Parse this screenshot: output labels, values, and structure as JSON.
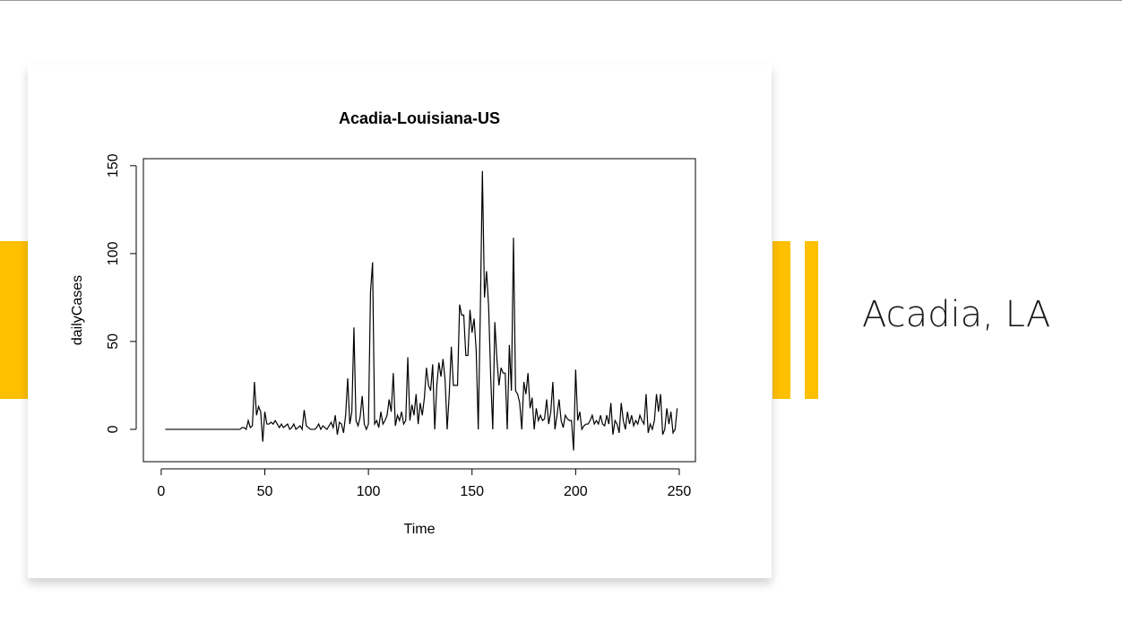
{
  "slide": {
    "title": "Acadia, LA"
  },
  "chart_data": {
    "type": "line",
    "title": "Acadia-Louisiana-US",
    "x_label": "Time",
    "y_label": "dailyCases",
    "x": [
      2,
      3,
      4,
      5,
      6,
      7,
      8,
      9,
      10,
      11,
      12,
      13,
      14,
      15,
      16,
      17,
      18,
      19,
      20,
      21,
      22,
      23,
      24,
      25,
      26,
      27,
      28,
      29,
      30,
      31,
      32,
      33,
      34,
      35,
      36,
      37,
      38,
      39,
      40,
      41,
      42,
      43,
      44,
      45,
      46,
      47,
      48,
      49,
      50,
      51,
      52,
      53,
      54,
      55,
      56,
      57,
      58,
      59,
      60,
      61,
      62,
      63,
      64,
      65,
      66,
      67,
      68,
      69,
      70,
      71,
      72,
      73,
      74,
      75,
      76,
      77,
      78,
      79,
      80,
      81,
      82,
      83,
      84,
      85,
      86,
      87,
      88,
      89,
      90,
      91,
      92,
      93,
      94,
      95,
      96,
      97,
      98,
      99,
      100,
      101,
      102,
      103,
      104,
      105,
      106,
      107,
      108,
      109,
      110,
      111,
      112,
      113,
      114,
      115,
      116,
      117,
      118,
      119,
      120,
      121,
      122,
      123,
      124,
      125,
      126,
      127,
      128,
      129,
      130,
      131,
      132,
      133,
      134,
      135,
      136,
      137,
      138,
      139,
      140,
      141,
      142,
      143,
      144,
      145,
      146,
      147,
      148,
      149,
      150,
      151,
      152,
      153,
      154,
      155,
      156,
      157,
      158,
      159,
      160,
      161,
      162,
      163,
      164,
      165,
      166,
      167,
      168,
      169,
      170,
      171,
      172,
      173,
      174,
      175,
      176,
      177,
      178,
      179,
      180,
      181,
      182,
      183,
      184,
      185,
      186,
      187,
      188,
      189,
      190,
      191,
      192,
      193,
      194,
      195,
      196,
      197,
      198,
      199,
      200,
      201,
      202,
      203,
      204,
      205,
      206,
      207,
      208,
      209,
      210,
      211,
      212,
      213,
      214,
      215,
      216,
      217,
      218,
      219,
      220,
      221,
      222,
      223,
      224,
      225,
      226,
      227,
      228,
      229,
      230,
      231,
      232,
      233,
      234,
      235,
      236,
      237,
      238,
      239,
      240,
      241,
      242,
      243,
      244,
      245,
      246,
      247,
      248,
      249
    ],
    "series": [
      {
        "name": "dailyCases",
        "color": "#000000",
        "values": [
          0,
          0,
          0,
          0,
          0,
          0,
          0,
          0,
          0,
          0,
          0,
          0,
          0,
          0,
          0,
          0,
          0,
          0,
          0,
          0,
          0,
          0,
          0,
          0,
          0,
          0,
          0,
          0,
          0,
          0,
          0,
          0,
          0,
          0,
          0,
          0,
          0,
          1,
          1,
          0,
          5,
          1,
          2,
          27,
          8,
          13,
          10,
          -7,
          10,
          3,
          3,
          4,
          3,
          5,
          3,
          1,
          3,
          1,
          2,
          3,
          0,
          1,
          3,
          0,
          1,
          2,
          0,
          11,
          2,
          1,
          0,
          0,
          0,
          1,
          3,
          0,
          2,
          1,
          0,
          2,
          4,
          1,
          8,
          -3,
          4,
          3,
          -2,
          8,
          29,
          3,
          10,
          58,
          5,
          2,
          7,
          19,
          3,
          0,
          3,
          78,
          95,
          3,
          5,
          1,
          10,
          3,
          5,
          8,
          17,
          10,
          32,
          2,
          8,
          5,
          10,
          3,
          5,
          41,
          5,
          14,
          8,
          20,
          3,
          15,
          8,
          18,
          35,
          25,
          22,
          37,
          0,
          25,
          38,
          30,
          40,
          28,
          0,
          20,
          47,
          25,
          25,
          25,
          71,
          65,
          65,
          42,
          42,
          68,
          55,
          63,
          45,
          0,
          67,
          147,
          75,
          90,
          70,
          30,
          0,
          61,
          40,
          25,
          35,
          32,
          32,
          0,
          48,
          22,
          109,
          22,
          20,
          15,
          0,
          27,
          20,
          32,
          12,
          18,
          0,
          12,
          5,
          8,
          5,
          6,
          17,
          3,
          10,
          27,
          0,
          8,
          17,
          5,
          1,
          8,
          6,
          5,
          5,
          -12,
          34,
          5,
          10,
          0,
          2,
          3,
          3,
          5,
          8,
          3,
          5,
          3,
          8,
          3,
          2,
          8,
          3,
          15,
          -3,
          5,
          3,
          -2,
          15,
          5,
          0,
          10,
          3,
          8,
          2,
          5,
          3,
          8,
          5,
          3,
          20,
          -2,
          3,
          0,
          5,
          20,
          10,
          20,
          -3,
          0,
          12,
          3,
          10,
          -2,
          0,
          12
        ]
      }
    ],
    "xlim": [
      -8.6,
      257.8
    ],
    "ylim": [
      -18.4,
      154
    ],
    "xticks": [
      0,
      50,
      100,
      150,
      200,
      250
    ],
    "yticks": [
      0,
      50,
      100,
      150
    ]
  }
}
